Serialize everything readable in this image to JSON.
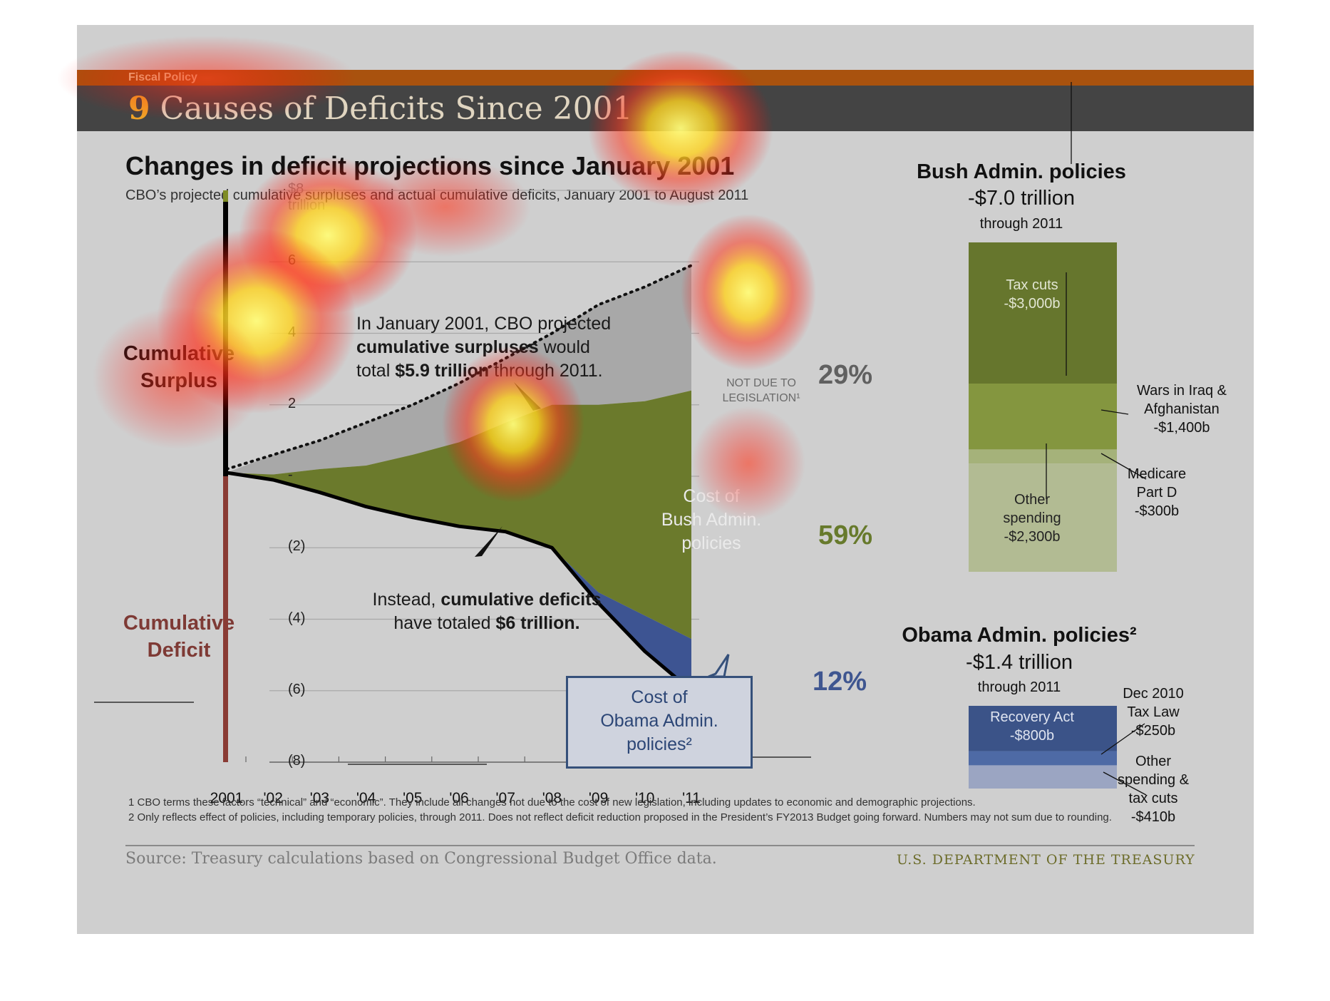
{
  "header": {
    "section_label": "Fiscal Policy",
    "title_number": "9",
    "title_text": " Causes of Deficits Since 2001"
  },
  "chart_data": {
    "type": "area",
    "title_part1": "Changes in deficit projections since ",
    "title_part2": "January 2001",
    "subtitle": "CBO’s projected cumulative surpluses and actual cumulative deficits, January 2001 to August 2011",
    "side_labels": {
      "surplus_line1": "Cumulative",
      "surplus_line2": "Surplus",
      "deficit_line1": "Cumulative",
      "deficit_line2": "Deficit"
    },
    "y_ticks": [
      "$8 trillion",
      "6",
      "4",
      "2",
      "-",
      "(2)",
      "(4)",
      "(6)",
      "(8)"
    ],
    "y_tick_values": [
      8,
      6,
      4,
      2,
      0,
      -2,
      -4,
      -6,
      -8
    ],
    "ylim": [
      -8,
      8
    ],
    "categories": [
      "2001",
      "'02",
      "'03",
      "'04",
      "'05",
      "'06",
      "'07",
      "'08",
      "'09",
      "'10",
      "'11"
    ],
    "x": [
      2001,
      2002,
      2003,
      2004,
      2005,
      2006,
      2007,
      2008,
      2009,
      2010,
      2011
    ],
    "xlim": [
      2000,
      2011.5
    ],
    "series": [
      {
        "values": [
          0.2,
          0.6,
          1.0,
          1.5,
          2.0,
          2.6,
          3.3,
          4.0,
          4.8,
          5.3,
          5.9
        ]
      },
      {
        "values": [
          0.1,
          0.05,
          0.2,
          0.3,
          0.6,
          0.95,
          1.5,
          2.0,
          2.0,
          2.1,
          2.4
        ]
      },
      {
        "values": [
          0.1,
          -0.1,
          -0.45,
          -0.85,
          -1.15,
          -1.4,
          -1.55,
          -2.0,
          -3.25,
          -3.9,
          -4.55
        ]
      },
      {
        "values": [
          0.1,
          -0.1,
          -0.45,
          -0.85,
          -1.15,
          -1.4,
          -1.55,
          -2.0,
          -3.55,
          -4.9,
          -6.0
        ]
      }
    ],
    "colors": {
      "not_due": "#a8a8a8",
      "bush": "#6b7a2c",
      "obama": "#3d5492",
      "projection_line": "#111111",
      "deficit_line": "#000000"
    },
    "annotations": {
      "surplus_a": "In January 2001, CBO projected",
      "surplus_b": "cumulative surpluses",
      "surplus_c": " would",
      "surplus_d": "total ",
      "surplus_e": "$5.9 trillion",
      "surplus_f": " through 2011.",
      "deficit_a": "Instead, ",
      "deficit_b": "cumulative deficits",
      "deficit_c": "have totaled ",
      "deficit_d": "$6 trillion.",
      "not_due_1": "NOT DUE TO",
      "not_due_2": "LEGISLATION¹",
      "bush_cost_1": "Cost of",
      "bush_cost_2": "Bush Admin.",
      "bush_cost_3": "policies",
      "obama_cost_1": "Cost of",
      "obama_cost_2": "Obama Admin.",
      "obama_cost_3": "policies²"
    },
    "shares": {
      "not_due": "29%",
      "bush": "59%",
      "obama": "12%"
    }
  },
  "bush_panel": {
    "title": "Bush Admin. policies",
    "amount": "-$7.0 trillion",
    "subtitle": "through 2011",
    "segments": [
      {
        "line1": "Tax cuts",
        "line2": "-$3,000b",
        "value": 3000,
        "color": "#66762d"
      },
      {
        "line1": "Wars in Iraq  &",
        "line2": "Afghanistan",
        "line3": "-$1,400b",
        "value": 1400,
        "color": "#84963f"
      },
      {
        "line1": "Medicare",
        "line2": "Part D",
        "line3": "-$300b",
        "value": 300,
        "color": "#a5b27a"
      },
      {
        "line1": "Other",
        "line2": "spending",
        "line3": "-$2,300b",
        "value": 2300,
        "color": "#b2bb93"
      }
    ]
  },
  "obama_panel": {
    "title": "Obama Admin. policies²",
    "amount": "-$1.4 trillion",
    "subtitle": "through 2011",
    "segments": [
      {
        "line1": "Recovery Act",
        "line2": "-$800b",
        "value": 800,
        "color": "#3b5388"
      },
      {
        "line1": "Dec 2010",
        "line2": "Tax Law",
        "line3": "-$250b",
        "value": 250,
        "color": "#4e6aa5"
      },
      {
        "line1": "Other",
        "line2": "spending &",
        "line3": "tax cuts",
        "line4": "-$410b",
        "value": 410,
        "color": "#9ba5c2"
      }
    ]
  },
  "footer": {
    "note1": "1 CBO terms these factors “technical” and “economic”. They include all changes not due to the cost of new legislation, including updates to economic and demographic projections.",
    "note2": "2 Only reflects effect of policies, including temporary policies, through 2011. Does not reflect deficit reduction proposed in the President’s FY2013 Budget going forward. Numbers may not sum due to rounding.",
    "source": "Source: Treasury calculations based on Congressional Budget Office data.",
    "agency": "U.S. DEPARTMENT OF THE TREASURY"
  }
}
